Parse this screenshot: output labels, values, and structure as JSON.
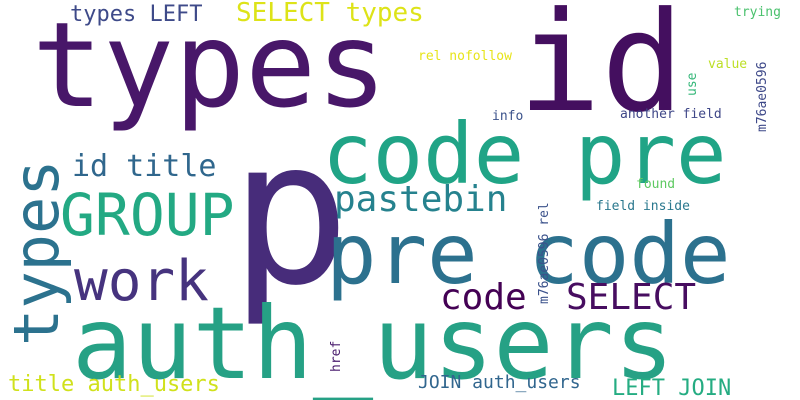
{
  "words": [
    {
      "id": "w1",
      "text": "types",
      "color": "#481769"
    },
    {
      "id": "w2",
      "text": "id",
      "color": "#440f5f"
    },
    {
      "id": "w3",
      "text": "p",
      "color": "#472c7a"
    },
    {
      "id": "w4",
      "text": "code pre",
      "color": "#20a486"
    },
    {
      "id": "w5",
      "text": "pre code",
      "color": "#2c718e"
    },
    {
      "id": "w6",
      "text": "auth_users",
      "color": "#26a185"
    },
    {
      "id": "w7",
      "text": "GROUP",
      "color": "#23a983"
    },
    {
      "id": "w8",
      "text": "work",
      "color": "#46337e"
    },
    {
      "id": "w9",
      "text": "pastebin",
      "color": "#26828e"
    },
    {
      "id": "w10",
      "text": "id title",
      "color": "#30678d"
    },
    {
      "id": "w11",
      "text": "code",
      "color": "#440154"
    },
    {
      "id": "w12",
      "text": "SELECT",
      "color": "#470d60"
    },
    {
      "id": "w13",
      "text": "types LEFT",
      "color": "#3e4a89"
    },
    {
      "id": "w14",
      "text": "SELECT types",
      "color": "#dde318"
    },
    {
      "id": "w15",
      "text": "title auth_users",
      "color": "#d0e11c"
    },
    {
      "id": "w16",
      "text": "JOIN auth_users",
      "color": "#31668e"
    },
    {
      "id": "w17",
      "text": "LEFT JOIN",
      "color": "#25ac82"
    },
    {
      "id": "w18",
      "text": "rel nofollow",
      "color": "#e7e419"
    },
    {
      "id": "w19",
      "text": "value",
      "color": "#bddf26"
    },
    {
      "id": "w20",
      "text": "trying",
      "color": "#4ac16d"
    },
    {
      "id": "w21",
      "text": "info",
      "color": "#3b528b"
    },
    {
      "id": "w22",
      "text": "another field",
      "color": "#3f4788"
    },
    {
      "id": "w23",
      "text": "found",
      "color": "#5ec962"
    },
    {
      "id": "w24",
      "text": "field inside",
      "color": "#2a788e"
    },
    {
      "id": "v1",
      "text": "types",
      "color": "#2c728e"
    },
    {
      "id": "v2",
      "text": "m76ae0596 rel",
      "color": "#3b528b"
    },
    {
      "id": "v3",
      "text": "use",
      "color": "#35b779"
    },
    {
      "id": "v4",
      "text": "m76ae0596",
      "color": "#3e4989"
    },
    {
      "id": "v5",
      "text": "href",
      "color": "#481a6c"
    }
  ]
}
